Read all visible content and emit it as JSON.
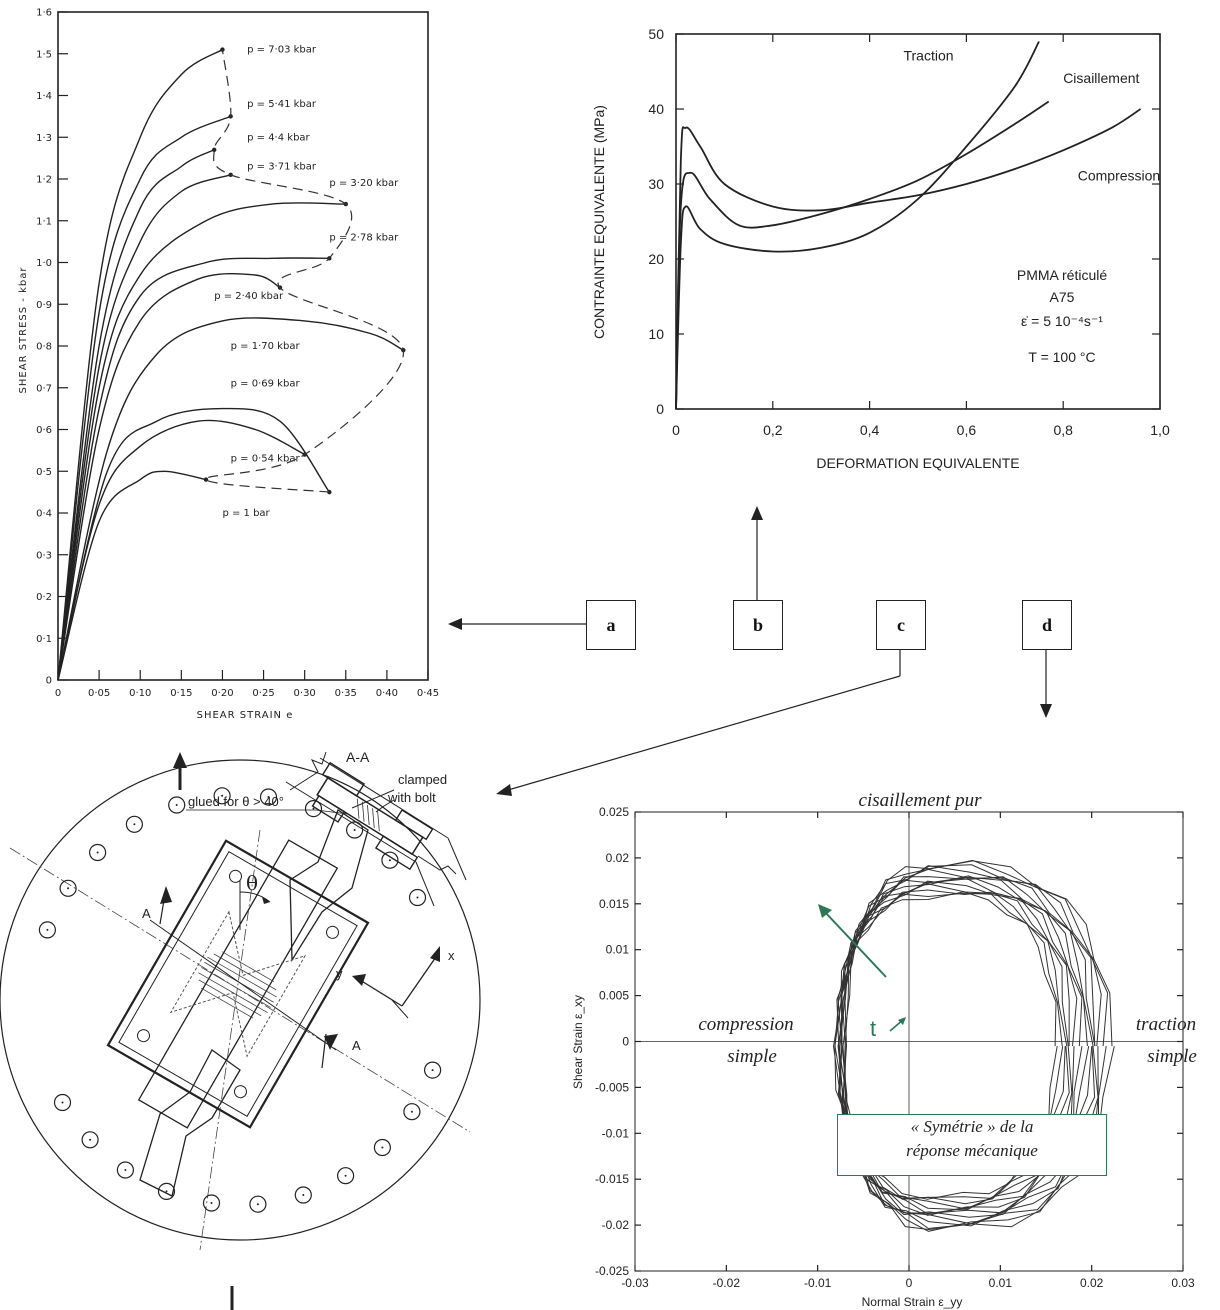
{
  "colors": {
    "ink": "#222222",
    "accent_green": "#2a7a55"
  },
  "labels": [
    "a",
    "b",
    "c",
    "d"
  ],
  "chart_data": [
    {
      "id": "a",
      "type": "line",
      "xlabel": "SHEAR STRAIN e",
      "ylabel": "SHEAR STRESS - kbar",
      "xlim": [
        0,
        0.45
      ],
      "ylim": [
        0,
        1.6
      ],
      "x_ticks": [
        "0",
        "0·05",
        "0·10",
        "0·15",
        "0·20",
        "0·25",
        "0·30",
        "0·35",
        "0·40",
        "0·45"
      ],
      "y_ticks": [
        "0",
        "0·1",
        "0·2",
        "0·3",
        "0·4",
        "0·5",
        "0·6",
        "0·7",
        "0·8",
        "0·9",
        "1·0",
        "1·1",
        "1·2",
        "1·3",
        "1·4",
        "1·5",
        "1·6"
      ],
      "series": [
        {
          "name": "p = 1 bar",
          "label_at": [
            0.2,
            0.4
          ],
          "points": [
            [
              0,
              0
            ],
            [
              0.05,
              0.38
            ],
            [
              0.1,
              0.48
            ],
            [
              0.13,
              0.5
            ],
            [
              0.18,
              0.48
            ]
          ]
        },
        {
          "name": "p = 0·54 kbar",
          "label_at": [
            0.21,
            0.53
          ],
          "points": [
            [
              0,
              0
            ],
            [
              0.05,
              0.42
            ],
            [
              0.1,
              0.56
            ],
            [
              0.17,
              0.62
            ],
            [
              0.24,
              0.6
            ],
            [
              0.3,
              0.54
            ]
          ]
        },
        {
          "name": "p = 0·69 kbar",
          "label_at": [
            0.21,
            0.71
          ],
          "points": [
            [
              0,
              0
            ],
            [
              0.06,
              0.5
            ],
            [
              0.12,
              0.62
            ],
            [
              0.2,
              0.65
            ],
            [
              0.27,
              0.62
            ],
            [
              0.33,
              0.45
            ]
          ]
        },
        {
          "name": "p = 1·70 kbar",
          "label_at": [
            0.21,
            0.8
          ],
          "points": [
            [
              0,
              0
            ],
            [
              0.06,
              0.55
            ],
            [
              0.12,
              0.78
            ],
            [
              0.2,
              0.86
            ],
            [
              0.3,
              0.86
            ],
            [
              0.38,
              0.83
            ],
            [
              0.42,
              0.79
            ]
          ]
        },
        {
          "name": "p = 2·40 kbar",
          "label_at": [
            0.19,
            0.92
          ],
          "points": [
            [
              0,
              0
            ],
            [
              0.05,
              0.6
            ],
            [
              0.1,
              0.86
            ],
            [
              0.17,
              0.96
            ],
            [
              0.24,
              0.97
            ],
            [
              0.27,
              0.94
            ]
          ]
        },
        {
          "name": "p = 2·78 kbar",
          "label_at": [
            0.33,
            1.06
          ],
          "points": [
            [
              0,
              0
            ],
            [
              0.05,
              0.65
            ],
            [
              0.1,
              0.92
            ],
            [
              0.18,
              1.0
            ],
            [
              0.26,
              1.01
            ],
            [
              0.33,
              1.01
            ]
          ]
        },
        {
          "name": "p = 3·20 kbar",
          "label_at": [
            0.33,
            1.19
          ],
          "points": [
            [
              0,
              0
            ],
            [
              0.05,
              0.7
            ],
            [
              0.1,
              0.97
            ],
            [
              0.18,
              1.1
            ],
            [
              0.26,
              1.14
            ],
            [
              0.35,
              1.14
            ]
          ]
        },
        {
          "name": "p = 3·71 kbar",
          "label_at": [
            0.23,
            1.23
          ],
          "points": [
            [
              0,
              0
            ],
            [
              0.05,
              0.75
            ],
            [
              0.1,
              1.05
            ],
            [
              0.15,
              1.17
            ],
            [
              0.21,
              1.21
            ]
          ]
        },
        {
          "name": "p = 4·4 kbar",
          "label_at": [
            0.23,
            1.3
          ],
          "points": [
            [
              0,
              0
            ],
            [
              0.05,
              0.8
            ],
            [
              0.1,
              1.13
            ],
            [
              0.15,
              1.23
            ],
            [
              0.19,
              1.27
            ]
          ]
        },
        {
          "name": "p = 5·41 kbar",
          "label_at": [
            0.23,
            1.38
          ],
          "points": [
            [
              0,
              0
            ],
            [
              0.05,
              0.88
            ],
            [
              0.1,
              1.2
            ],
            [
              0.15,
              1.3
            ],
            [
              0.21,
              1.35
            ]
          ]
        },
        {
          "name": "p = 7·03 kbar",
          "label_at": [
            0.23,
            1.51
          ],
          "points": [
            [
              0,
              0
            ],
            [
              0.05,
              0.95
            ],
            [
              0.1,
              1.3
            ],
            [
              0.15,
              1.45
            ],
            [
              0.2,
              1.51
            ]
          ]
        }
      ]
    },
    {
      "id": "b",
      "type": "line",
      "xlabel": "DEFORMATION EQUIVALENTE",
      "ylabel": "CONTRAINTE EQUIVALENTE  (MPa)",
      "xlim": [
        0,
        1.0
      ],
      "ylim": [
        0,
        50
      ],
      "x_ticks": [
        "0",
        "0,2",
        "0,4",
        "0,6",
        "0,8",
        "1,0"
      ],
      "y_ticks": [
        "0",
        "10",
        "20",
        "30",
        "40",
        "50"
      ],
      "annotation": [
        "PMMA réticulé",
        "A75",
        "ε̇ = 5 10⁻⁴s⁻¹",
        "T = 100  °C"
      ],
      "series": [
        {
          "name": "Traction",
          "label_at": [
            0.47,
            46.5
          ],
          "points": [
            [
              0,
              0
            ],
            [
              0.01,
              22
            ],
            [
              0.02,
              27
            ],
            [
              0.05,
              24
            ],
            [
              0.1,
              22
            ],
            [
              0.2,
              21
            ],
            [
              0.3,
              21.5
            ],
            [
              0.4,
              23.5
            ],
            [
              0.5,
              28
            ],
            [
              0.6,
              35
            ],
            [
              0.7,
              43
            ],
            [
              0.75,
              49
            ]
          ]
        },
        {
          "name": "Cisaillement",
          "label_at": [
            0.8,
            43.5
          ],
          "points": [
            [
              0,
              0
            ],
            [
              0.01,
              27
            ],
            [
              0.03,
              31.5
            ],
            [
              0.07,
              28
            ],
            [
              0.13,
              24.5
            ],
            [
              0.2,
              24.5
            ],
            [
              0.3,
              26
            ],
            [
              0.4,
              28
            ],
            [
              0.5,
              30.5
            ],
            [
              0.6,
              34
            ],
            [
              0.7,
              38
            ],
            [
              0.77,
              41
            ]
          ]
        },
        {
          "name": "Compression",
          "label_at": [
            0.83,
            30.5
          ],
          "points": [
            [
              0,
              0
            ],
            [
              0.01,
              33
            ],
            [
              0.02,
              37.5
            ],
            [
              0.05,
              35
            ],
            [
              0.1,
              30
            ],
            [
              0.2,
              27
            ],
            [
              0.3,
              26.5
            ],
            [
              0.4,
              27.5
            ],
            [
              0.5,
              28.5
            ],
            [
              0.6,
              30
            ],
            [
              0.7,
              32
            ],
            [
              0.8,
              34.5
            ],
            [
              0.9,
              37.5
            ],
            [
              0.96,
              40
            ]
          ]
        }
      ]
    },
    {
      "id": "d",
      "type": "line",
      "xlabel": "Normal Strain ε_yy",
      "ylabel": "Shear Strain ε_xy",
      "xlim": [
        -0.03,
        0.03
      ],
      "ylim": [
        -0.025,
        0.025
      ],
      "x_ticks": [
        "-0.03",
        "-0.02",
        "-0.01",
        "0",
        "0.01",
        "0.02",
        "0.03"
      ],
      "y_ticks": [
        "-0.025",
        "-0.02",
        "-0.015",
        "-0.01",
        "-0.005",
        "0",
        "0.005",
        "0.01",
        "0.015",
        "0.02",
        "0.025"
      ],
      "quadrant_labels": {
        "top": "cisaillement pur",
        "left": [
          "compression",
          "simple"
        ],
        "right": [
          "traction",
          "simple"
        ]
      },
      "arrow_label": "t",
      "note": [
        "« Symétrie » de la",
        "réponse mécanique"
      ],
      "loops": {
        "center": [
          0.004,
          -0.0005
        ],
        "rx_min": 0.012,
        "rx_max": 0.018,
        "ry_min": 0.0165,
        "ry_max": 0.02,
        "count": 14
      }
    }
  ],
  "diagram_c": {
    "section_label": "A-A",
    "clamped_label": [
      "clamped",
      "with bolt"
    ],
    "glued_label": "glued for θ > 40°",
    "theta": "θ",
    "cut_label": "A",
    "axis_x": "x",
    "axis_y": "y"
  }
}
